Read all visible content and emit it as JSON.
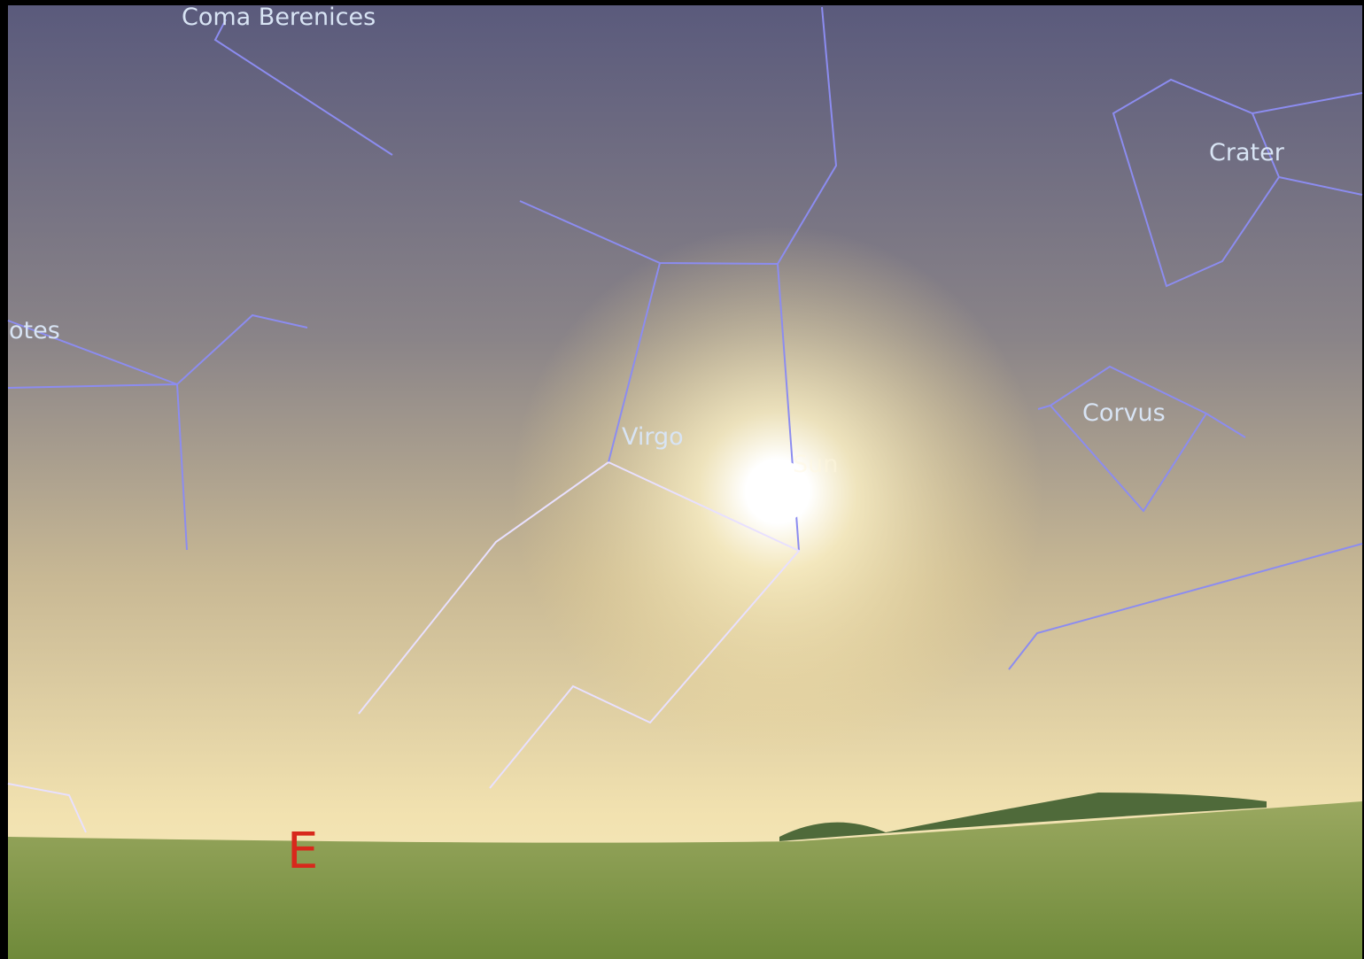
{
  "labels": {
    "coma_berenices": "Coma Berenices",
    "bootes": "otes",
    "virgo": "Virgo",
    "sun": "Sun",
    "crater": "Crater",
    "corvus": "Corvus",
    "cardinal_east": "E"
  }
}
